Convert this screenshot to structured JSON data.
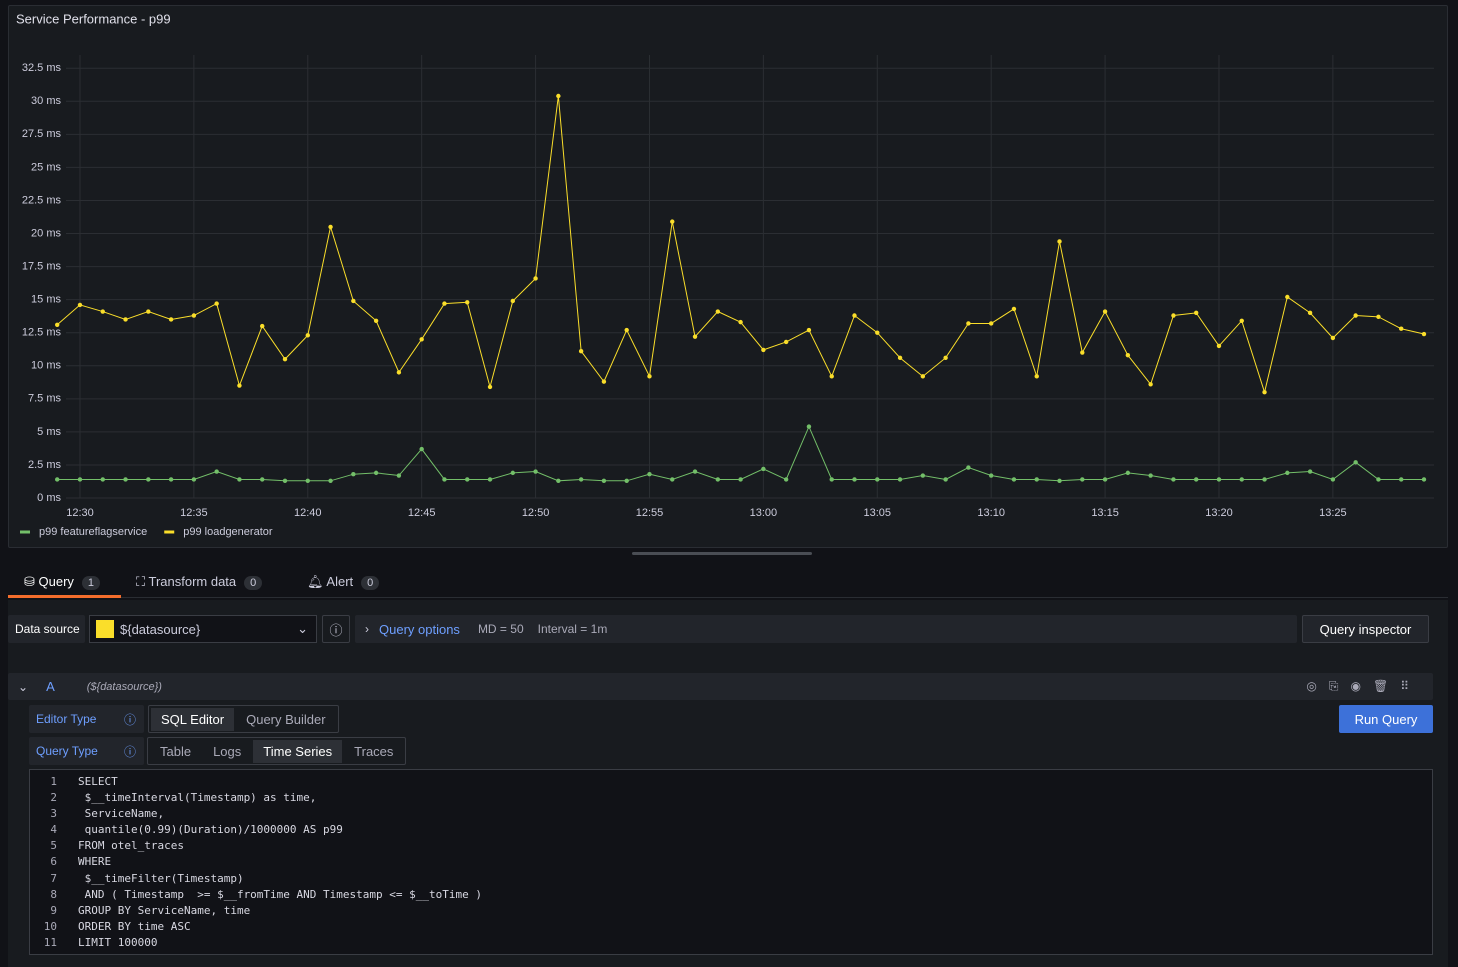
{
  "chart_data": {
    "type": "line",
    "title": "Service Performance - p99",
    "categories": [
      null,
      "12:30",
      null,
      null,
      null,
      null,
      "12:35",
      null,
      null,
      null,
      null,
      "12:40",
      null,
      null,
      null,
      null,
      "12:45",
      null,
      null,
      null,
      null,
      "12:50",
      null,
      null,
      null,
      null,
      "12:55",
      null,
      null,
      null,
      null,
      "13:00",
      null,
      null,
      null,
      null,
      "13:05",
      null,
      null,
      null,
      null,
      "13:10",
      null,
      null,
      null,
      null,
      "13:15",
      null,
      null,
      null,
      null,
      "13:20",
      null,
      null,
      null,
      null,
      "13:25",
      null,
      null,
      null,
      null
    ],
    "series": [
      {
        "name": "p99 featureflagservice",
        "color": "#73bf69",
        "values": [
          1.4,
          1.4,
          1.4,
          1.4,
          1.4,
          1.4,
          1.4,
          2.0,
          1.4,
          1.4,
          1.3,
          1.3,
          1.3,
          1.8,
          1.9,
          1.7,
          3.7,
          1.4,
          1.4,
          1.4,
          1.9,
          2.0,
          1.3,
          1.4,
          1.3,
          1.3,
          1.8,
          1.4,
          2.0,
          1.4,
          1.4,
          2.2,
          1.4,
          5.4,
          1.4,
          1.4,
          1.4,
          1.4,
          1.7,
          1.4,
          2.3,
          1.7,
          1.4,
          1.4,
          1.3,
          1.4,
          1.4,
          1.9,
          1.7,
          1.4,
          1.4,
          1.4,
          1.4,
          1.4,
          1.9,
          2.0,
          1.4,
          2.7,
          1.4,
          1.4,
          1.4
        ]
      },
      {
        "name": "p99 loadgenerator",
        "color": "#fade2a",
        "values": [
          13.1,
          14.6,
          14.1,
          13.5,
          14.1,
          13.5,
          13.8,
          14.7,
          8.5,
          13.0,
          10.5,
          12.3,
          20.5,
          14.9,
          13.4,
          9.5,
          12.0,
          14.7,
          14.8,
          8.4,
          14.9,
          16.6,
          30.4,
          11.1,
          8.8,
          12.7,
          9.2,
          20.9,
          12.2,
          14.1,
          13.3,
          11.2,
          11.8,
          12.7,
          9.2,
          13.8,
          12.5,
          10.6,
          9.2,
          10.6,
          13.2,
          13.2,
          14.3,
          9.2,
          19.4,
          11.0,
          14.1,
          10.8,
          8.6,
          13.8,
          14.0,
          11.5,
          13.4,
          8.0,
          15.2,
          14.0,
          12.1,
          13.8,
          13.7,
          12.8,
          12.4
        ]
      }
    ],
    "ylim": [
      0,
      33.5
    ],
    "yticks": [
      {
        "value": 0,
        "label": "0 ms"
      },
      {
        "value": 2.5,
        "label": "2.5 ms"
      },
      {
        "value": 5,
        "label": "5 ms"
      },
      {
        "value": 7.5,
        "label": "7.5 ms"
      },
      {
        "value": 10,
        "label": "10 ms"
      },
      {
        "value": 12.5,
        "label": "12.5 ms"
      },
      {
        "value": 15,
        "label": "15 ms"
      },
      {
        "value": 17.5,
        "label": "17.5 ms"
      },
      {
        "value": 20,
        "label": "20 ms"
      },
      {
        "value": 22.5,
        "label": "22.5 ms"
      },
      {
        "value": 25,
        "label": "25 ms"
      },
      {
        "value": 27.5,
        "label": "27.5 ms"
      },
      {
        "value": 30,
        "label": "30 ms"
      },
      {
        "value": 32.5,
        "label": "32.5 ms"
      }
    ],
    "grid": true,
    "legend": "bottom-left"
  },
  "tabs": [
    {
      "label": "Query",
      "count": 1
    },
    {
      "label": "Transform data",
      "count": 0
    },
    {
      "label": "Alert",
      "count": 0
    }
  ],
  "toolbar": {
    "data_source_label": "Data source",
    "data_source": "${datasource}",
    "query_options": "Query options",
    "max_data_points": "MD = 50",
    "interval": "Interval = 1m",
    "query_inspector": "Query inspector"
  },
  "query": {
    "ref_id": "A",
    "data_source": "(${datasource})",
    "editor_type_label": "Editor Type",
    "editor_types": [
      "SQL Editor",
      "Query Builder"
    ],
    "run_query": "Run Query",
    "query_type_label": "Query Type",
    "query_types": [
      "Table",
      "Logs",
      "Time Series",
      "Traces"
    ],
    "line_numbers": [
      1,
      2,
      3,
      4,
      5,
      6,
      7,
      8,
      9,
      10,
      11
    ],
    "code_lines": [
      "SELECT",
      " $__timeInterval(Timestamp) as time,",
      " ServiceName,",
      " quantile(0.99)(Duration)/1000000 AS p99",
      "FROM otel_traces",
      "WHERE",
      " $__timeFilter(Timestamp)",
      " AND ( Timestamp  >= $__fromTime AND Timestamp <= $__toTime )",
      "GROUP BY ServiceName, time",
      "ORDER BY time ASC",
      "LIMIT 100000"
    ]
  }
}
